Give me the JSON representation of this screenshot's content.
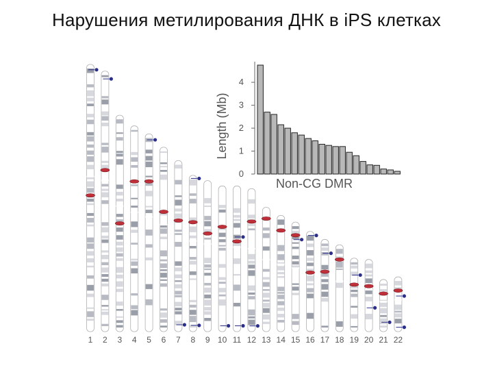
{
  "title": "Нарушения метилирования ДНК в iPS клетках",
  "chart_data": {
    "type": "bar",
    "title": "",
    "xlabel": "Non-CG DMR",
    "ylabel": "Length (Mb)",
    "ylim": [
      0,
      4.9
    ],
    "yticks": [
      "0",
      "1",
      "2",
      "3",
      "4"
    ],
    "values": [
      4.75,
      2.7,
      2.6,
      2.15,
      2.0,
      1.8,
      1.7,
      1.55,
      1.45,
      1.3,
      1.25,
      1.2,
      1.2,
      0.95,
      0.8,
      0.55,
      0.4,
      0.38,
      0.22,
      0.18,
      0.12
    ],
    "bar_color": "#b8b8b8"
  },
  "chromosomes": [
    {
      "label": "1",
      "len": 1.0,
      "dmr": 0.49,
      "blue": [
        0.02
      ]
    },
    {
      "label": "2",
      "len": 0.975,
      "dmr": 0.38,
      "blue": [
        0.03
      ]
    },
    {
      "label": "3",
      "len": 0.81,
      "dmr": 0.5,
      "blue": []
    },
    {
      "label": "4",
      "len": 0.77,
      "dmr": 0.27,
      "blue": []
    },
    {
      "label": "5",
      "len": 0.74,
      "dmr": 0.24,
      "blue": [
        0.03
      ]
    },
    {
      "label": "6",
      "len": 0.69,
      "dmr": 0.35,
      "blue": []
    },
    {
      "label": "7",
      "len": 0.64,
      "dmr": 0.35,
      "blue": [
        0.96
      ]
    },
    {
      "label": "8",
      "len": 0.585,
      "dmr": 0.3,
      "blue": [
        0.02,
        0.96
      ]
    },
    {
      "label": "9",
      "len": 0.565,
      "dmr": 0.35,
      "blue": []
    },
    {
      "label": "10",
      "len": 0.545,
      "dmr": 0.28,
      "blue": [
        0.96
      ]
    },
    {
      "label": "11",
      "len": 0.545,
      "dmr": 0.38,
      "blue": [
        0.35,
        0.96
      ]
    },
    {
      "label": "12",
      "len": 0.535,
      "dmr": 0.23,
      "blue": [
        0.96
      ]
    },
    {
      "label": "13",
      "len": 0.465,
      "dmr": 0.09,
      "blue": []
    },
    {
      "label": "14",
      "len": 0.435,
      "dmr": 0.13,
      "blue": []
    },
    {
      "label": "15",
      "len": 0.41,
      "dmr": 0.12,
      "blue": [
        0.16
      ]
    },
    {
      "label": "16",
      "len": 0.375,
      "dmr": 0.41,
      "blue": [
        0.04
      ]
    },
    {
      "label": "17",
      "len": 0.345,
      "dmr": 0.35,
      "blue": [
        0.15
      ]
    },
    {
      "label": "18",
      "len": 0.325,
      "dmr": 0.17,
      "blue": []
    },
    {
      "label": "19",
      "len": 0.275,
      "dmr": 0.36,
      "blue": [
        0.23
      ]
    },
    {
      "label": "20",
      "len": 0.27,
      "dmr": 0.37,
      "blue": [
        0.67
      ]
    },
    {
      "label": "21",
      "len": 0.195,
      "dmr": 0.27,
      "blue": [
        0.82
      ]
    },
    {
      "label": "22",
      "len": 0.205,
      "dmr": 0.25,
      "blue": [
        0.35,
        0.92
      ]
    }
  ]
}
